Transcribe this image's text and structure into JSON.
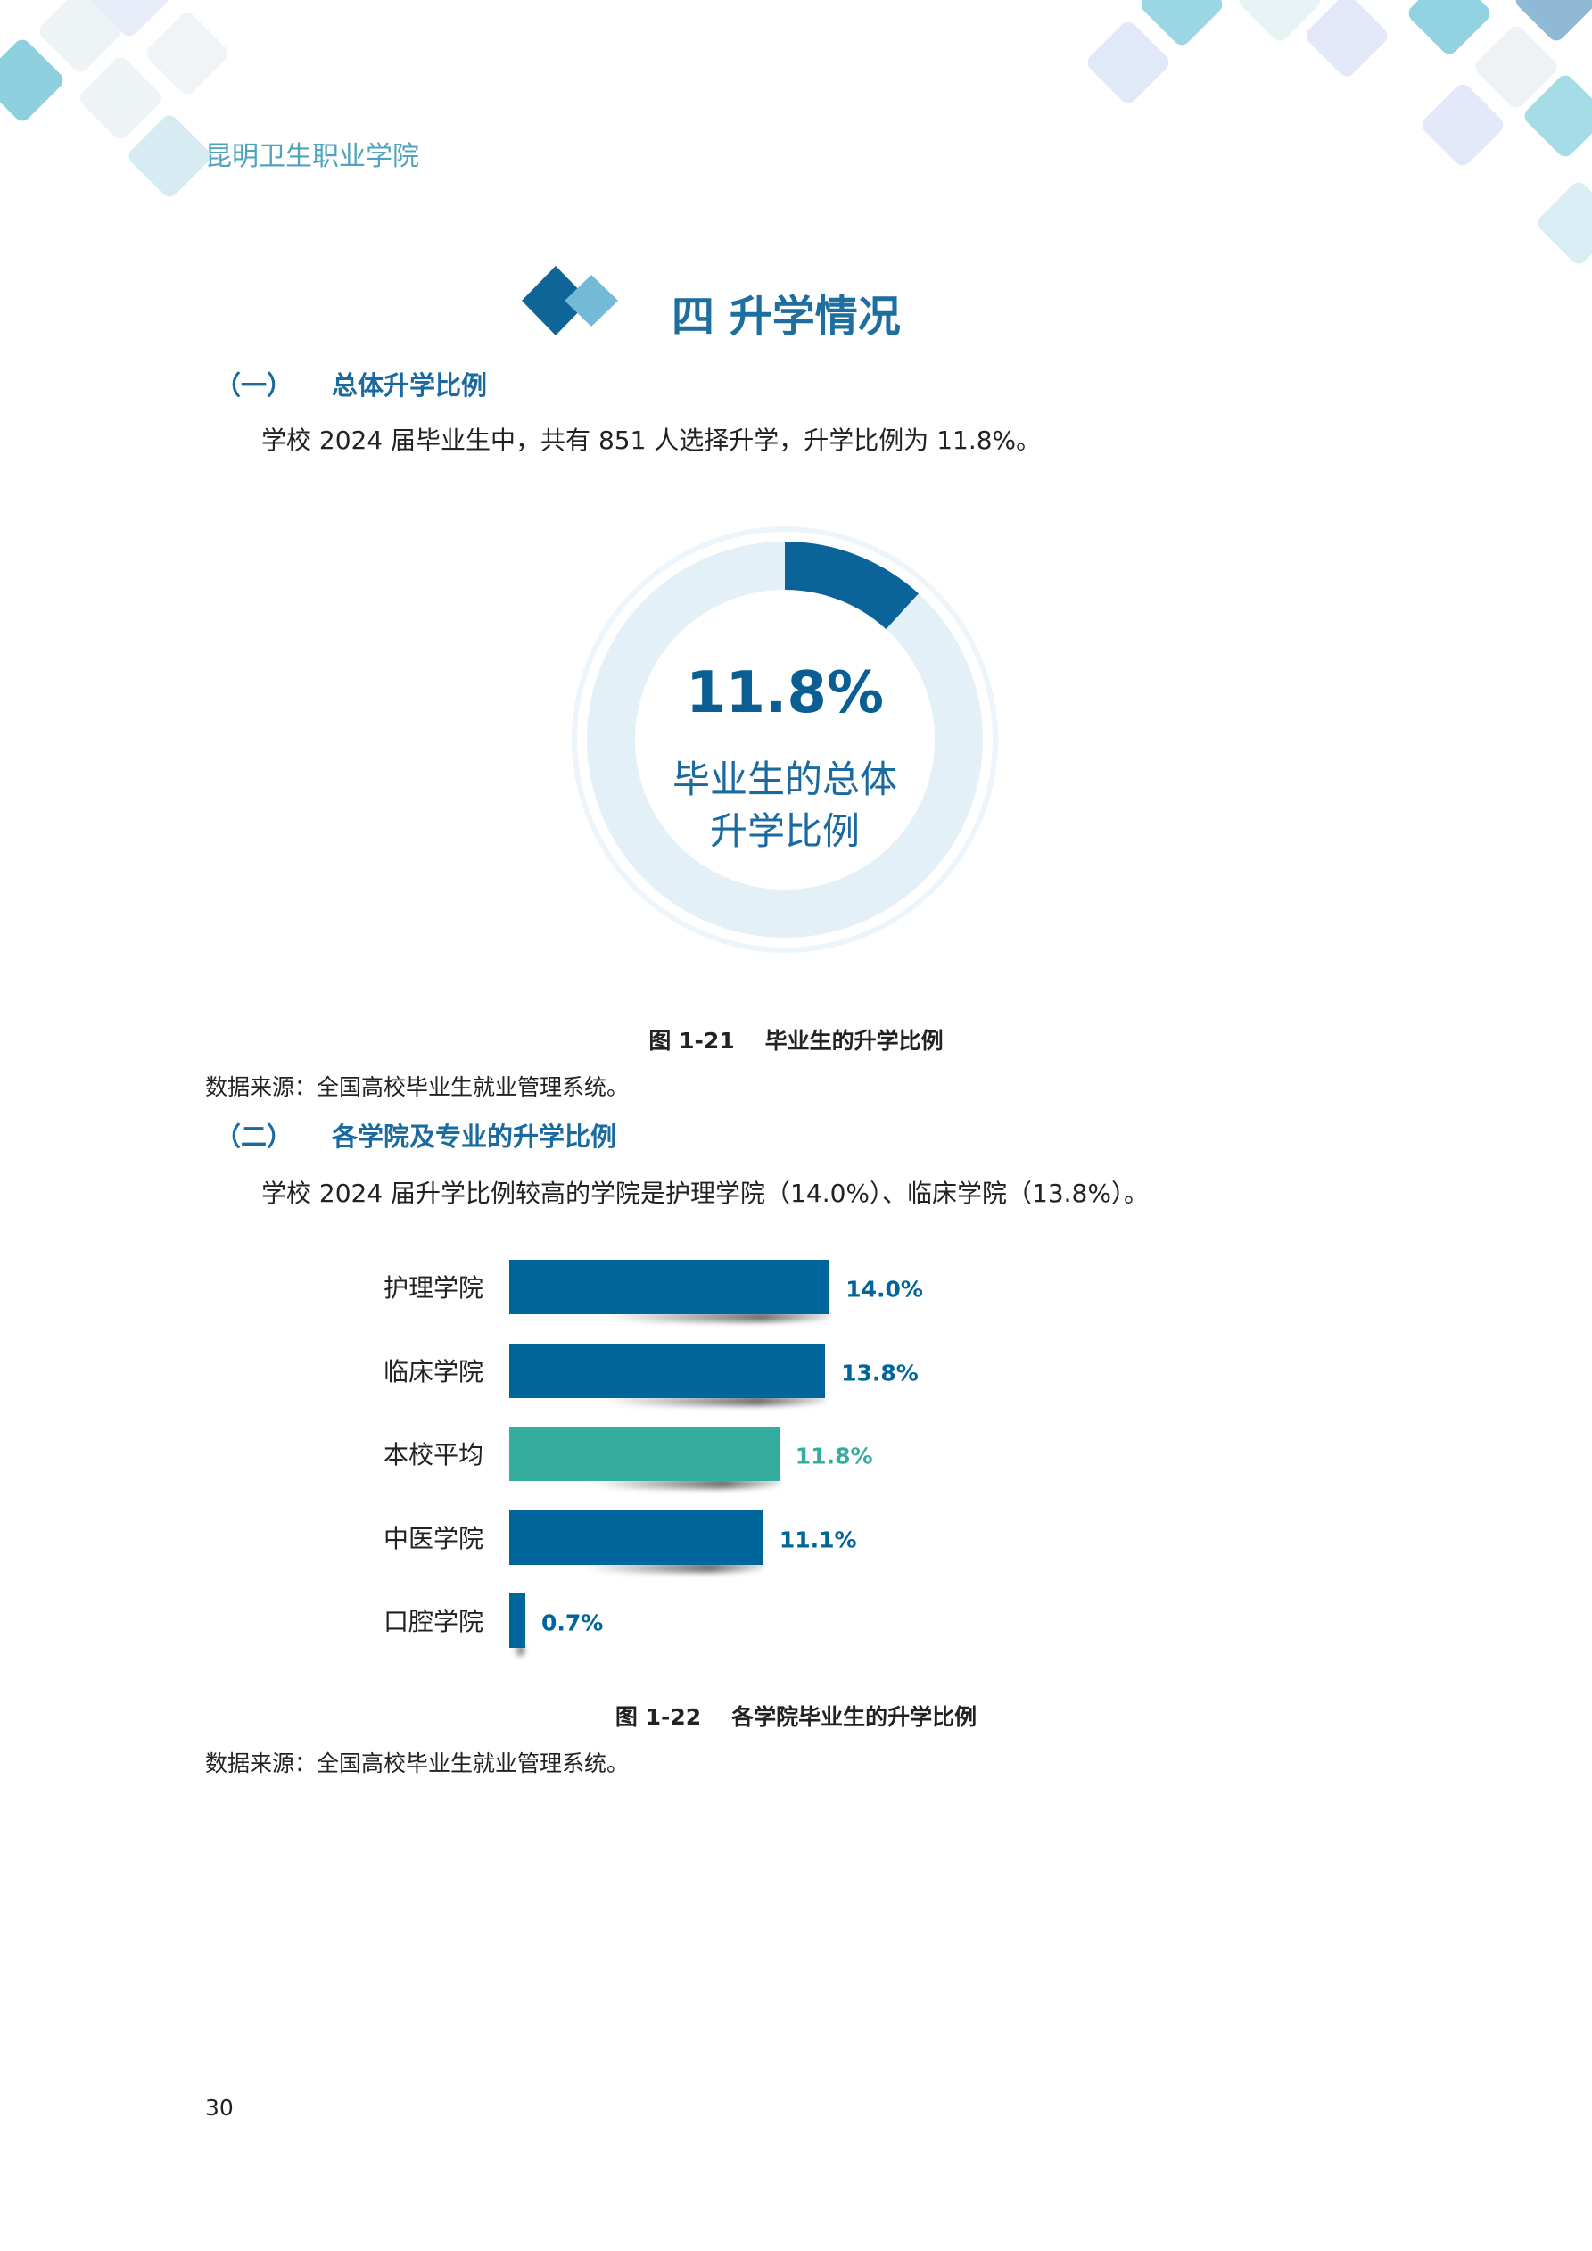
{
  "header": {
    "institution": "昆明卫生职业学院"
  },
  "section": {
    "title": "四 升学情况"
  },
  "subsection1": {
    "number": "（一）",
    "title": "总体升学比例",
    "paragraph": "学校 2024 届毕业生中，共有 851 人选择升学，升学比例为 11.8%。"
  },
  "figure1": {
    "value_label": "11.8%",
    "center_line1": "毕业生的总体",
    "center_line2": "升学比例",
    "caption_number": "图 1-21",
    "caption_title": "毕业生的升学比例",
    "source": "数据来源：全国高校毕业生就业管理系统。"
  },
  "subsection2": {
    "number": "（二）",
    "title": "各学院及专业的升学比例",
    "paragraph": "学校 2024 届升学比例较高的学院是护理学院（14.0%）、临床学院（13.8%）。"
  },
  "figure2": {
    "caption_number": "图 1-22",
    "caption_title": "各学院毕业生的升学比例",
    "source": "数据来源：全国高校毕业生就业管理系统。"
  },
  "chart_data": [
    {
      "type": "pie",
      "subtype": "donut",
      "values": [
        11.8,
        88.2
      ],
      "unit": "%",
      "label": "11.8%",
      "colors": [
        "#0a6399",
        "#e4f0f8"
      ]
    },
    {
      "type": "bar",
      "orientation": "horizontal",
      "categories": [
        "护理学院",
        "临床学院",
        "本校平均",
        "中医学院",
        "口腔学院"
      ],
      "values": [
        14.0,
        13.8,
        11.8,
        11.1,
        0.7
      ],
      "data_labels": [
        "14.0%",
        "13.8%",
        "11.8%",
        "11.1%",
        "0.7%"
      ],
      "colors": [
        "#00659a",
        "#00659a",
        "#35ad9e",
        "#00659a",
        "#00659a"
      ],
      "grid": false
    }
  ],
  "footer": {
    "page_number": "30"
  },
  "colors": {
    "primary": "#00659a",
    "accent": "#35ad9e",
    "heading": "#1a6aa0"
  }
}
